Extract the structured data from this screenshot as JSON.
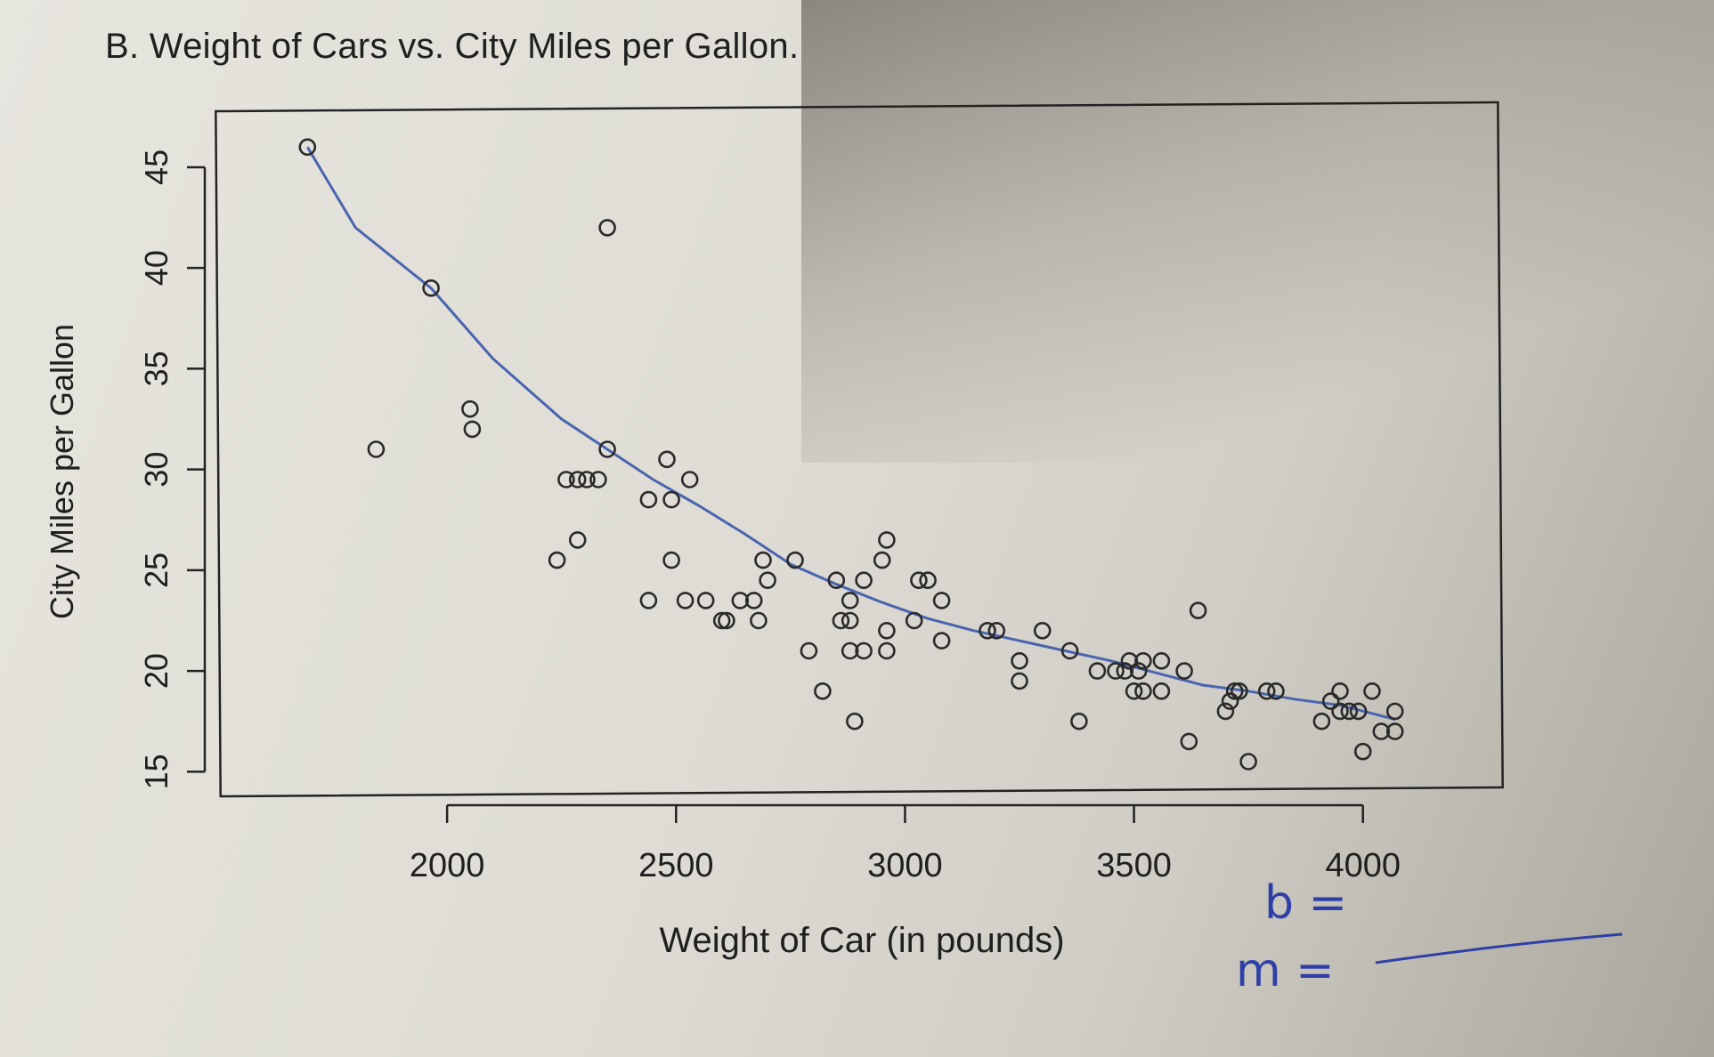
{
  "chart_data": {
    "type": "scatter",
    "title": "B. Weight of Cars vs. City Miles per Gallon.",
    "xlabel": "Weight of Car (in pounds)",
    "ylabel": "City Miles per Gallon",
    "xlim": [
      1500,
      4300
    ],
    "ylim": [
      14,
      48
    ],
    "xticks": [
      2000,
      2500,
      3000,
      3500,
      4000
    ],
    "yticks": [
      15,
      20,
      25,
      30,
      35,
      40,
      45
    ],
    "grid": false,
    "marker_color": "#2a2a2a",
    "curve_color": "#4a64b0",
    "points": [
      [
        1695,
        46
      ],
      [
        1965,
        39
      ],
      [
        1845,
        31
      ],
      [
        2050,
        33
      ],
      [
        2055,
        32
      ],
      [
        2350,
        42
      ],
      [
        2260,
        29.5
      ],
      [
        2285,
        29.5
      ],
      [
        2305,
        29.5
      ],
      [
        2330,
        29.5
      ],
      [
        2350,
        31
      ],
      [
        2240,
        25.5
      ],
      [
        2285,
        26.5
      ],
      [
        2480,
        30.5
      ],
      [
        2530,
        29.5
      ],
      [
        2440,
        28.5
      ],
      [
        2490,
        28.5
      ],
      [
        2490,
        25.5
      ],
      [
        2440,
        23.5
      ],
      [
        2520,
        23.5
      ],
      [
        2565,
        23.5
      ],
      [
        2610,
        22.5
      ],
      [
        2640,
        23.5
      ],
      [
        2670,
        23.5
      ],
      [
        2600,
        22.5
      ],
      [
        2680,
        22.5
      ],
      [
        2690,
        25.5
      ],
      [
        2700,
        24.5
      ],
      [
        2760,
        25.5
      ],
      [
        2790,
        21
      ],
      [
        2820,
        19
      ],
      [
        2850,
        24.5
      ],
      [
        2880,
        23.5
      ],
      [
        2910,
        24.5
      ],
      [
        2860,
        22.5
      ],
      [
        2880,
        22.5
      ],
      [
        2880,
        21
      ],
      [
        2910,
        21
      ],
      [
        2890,
        17.5
      ],
      [
        2950,
        25.5
      ],
      [
        2960,
        26.5
      ],
      [
        2960,
        22
      ],
      [
        2960,
        21
      ],
      [
        3020,
        22.5
      ],
      [
        3030,
        24.5
      ],
      [
        3050,
        24.5
      ],
      [
        3080,
        23.5
      ],
      [
        3080,
        21.5
      ],
      [
        3180,
        22
      ],
      [
        3200,
        22
      ],
      [
        3250,
        20.5
      ],
      [
        3250,
        19.5
      ],
      [
        3300,
        22
      ],
      [
        3360,
        21
      ],
      [
        3380,
        17.5
      ],
      [
        3420,
        20
      ],
      [
        3460,
        20
      ],
      [
        3480,
        20
      ],
      [
        3490,
        20.5
      ],
      [
        3520,
        20.5
      ],
      [
        3510,
        20
      ],
      [
        3500,
        19
      ],
      [
        3520,
        19
      ],
      [
        3560,
        19
      ],
      [
        3560,
        20.5
      ],
      [
        3610,
        20
      ],
      [
        3620,
        16.5
      ],
      [
        3640,
        23
      ],
      [
        3700,
        18
      ],
      [
        3710,
        18.5
      ],
      [
        3720,
        19
      ],
      [
        3730,
        19
      ],
      [
        3750,
        15.5
      ],
      [
        3790,
        19
      ],
      [
        3810,
        19
      ],
      [
        3910,
        17.5
      ],
      [
        3930,
        18.5
      ],
      [
        3950,
        18
      ],
      [
        3950,
        19
      ],
      [
        3970,
        18
      ],
      [
        3990,
        18
      ],
      [
        4000,
        16
      ],
      [
        4020,
        19
      ],
      [
        4040,
        17
      ],
      [
        4070,
        18
      ],
      [
        4070,
        17
      ]
    ],
    "smooth_curve": [
      [
        1695,
        46
      ],
      [
        1800,
        42
      ],
      [
        1965,
        39
      ],
      [
        2100,
        35.5
      ],
      [
        2250,
        32.5
      ],
      [
        2350,
        31
      ],
      [
        2450,
        29.5
      ],
      [
        2550,
        28.2
      ],
      [
        2650,
        26.8
      ],
      [
        2750,
        25.3
      ],
      [
        2850,
        24.3
      ],
      [
        2950,
        23.4
      ],
      [
        3050,
        22.6
      ],
      [
        3150,
        22
      ],
      [
        3250,
        21.5
      ],
      [
        3350,
        21
      ],
      [
        3450,
        20.5
      ],
      [
        3550,
        19.9
      ],
      [
        3650,
        19.3
      ],
      [
        3750,
        19
      ],
      [
        3850,
        18.6
      ],
      [
        3950,
        18.3
      ],
      [
        4070,
        17.6
      ]
    ]
  },
  "annotations": {
    "b_label": "b =",
    "m_label": "m ="
  }
}
